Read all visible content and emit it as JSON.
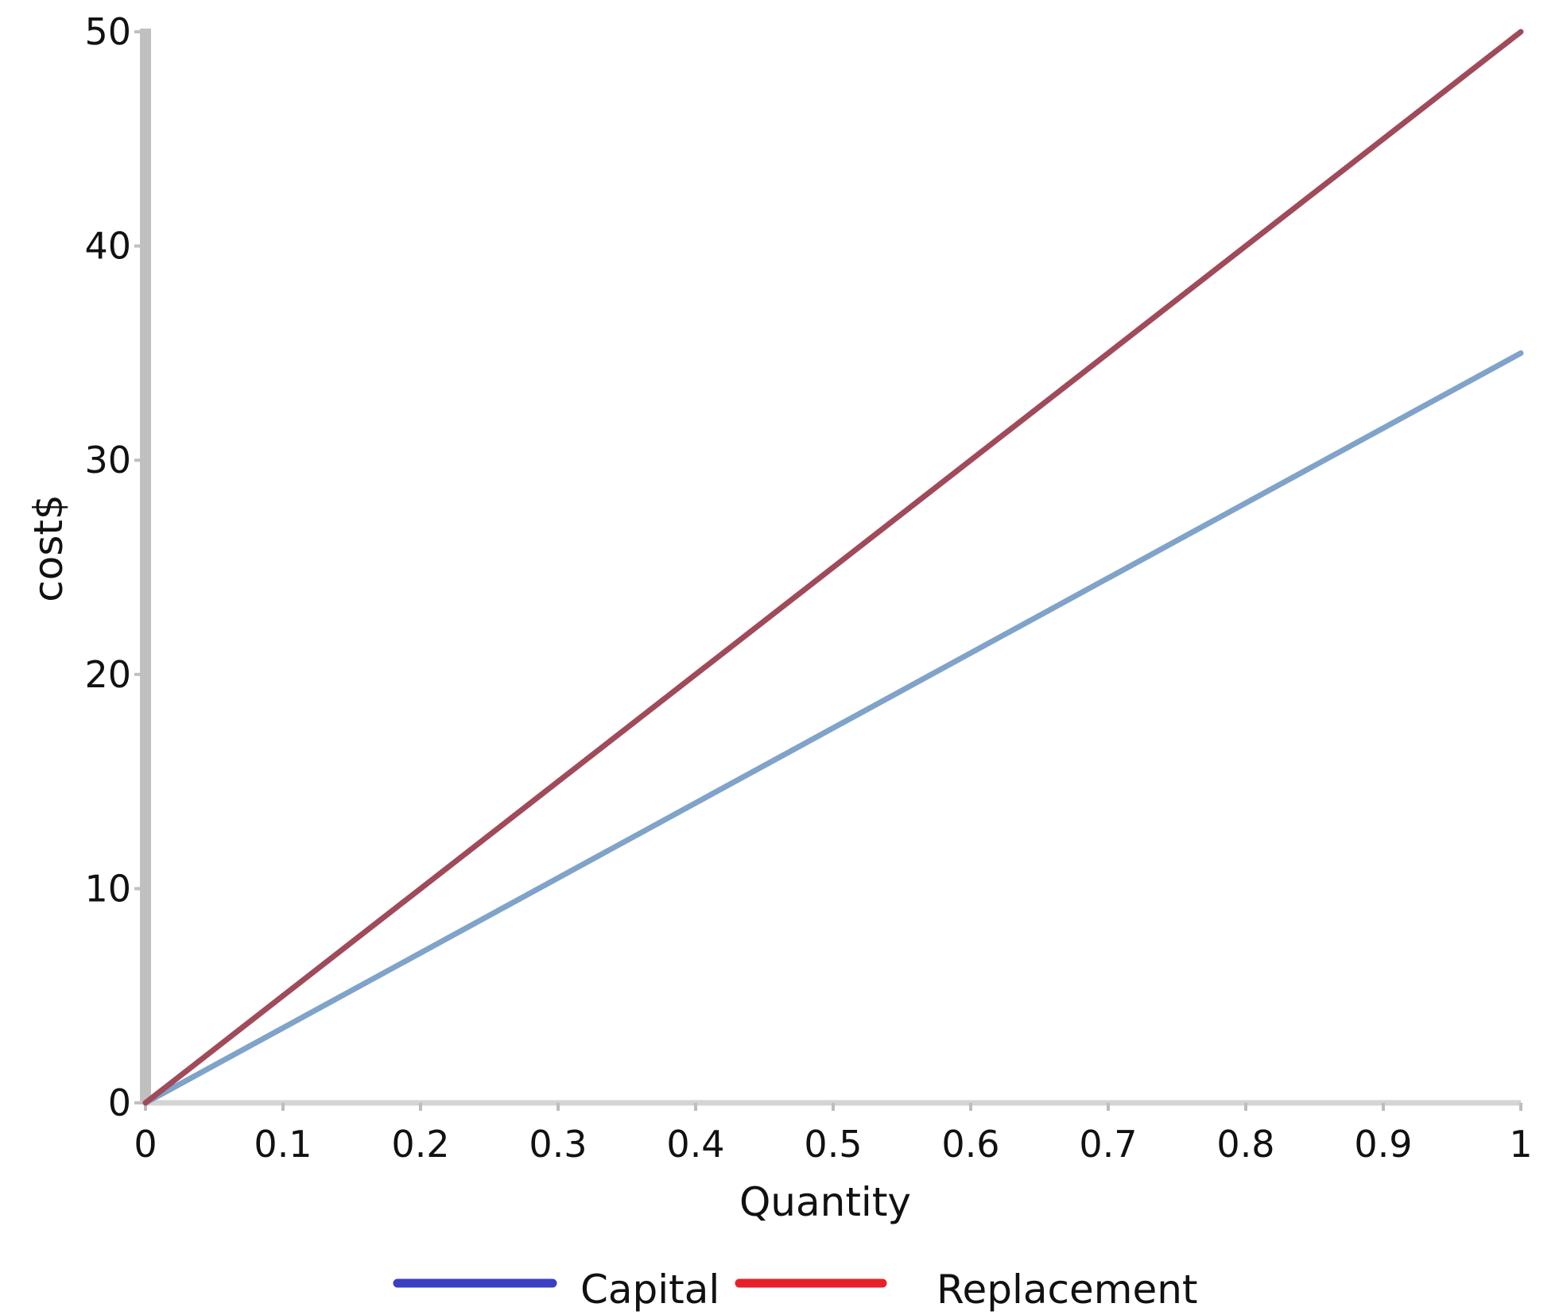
{
  "chart_data": {
    "type": "line",
    "title": "",
    "xlabel": "Quantity",
    "ylabel": "cost$",
    "xlim": [
      0,
      1
    ],
    "ylim": [
      0,
      50
    ],
    "x_ticks": [
      "0",
      "0.1",
      "0.2",
      "0.3",
      "0.4",
      "0.5",
      "0.6",
      "0.7",
      "0.8",
      "0.9",
      "1"
    ],
    "y_ticks": [
      "0",
      "10",
      "20",
      "30",
      "40",
      "50"
    ],
    "grid": false,
    "legend_position": "bottom",
    "series": [
      {
        "name": "Capital",
        "x": [
          0,
          1
        ],
        "y": [
          0,
          35
        ],
        "line_color": "#7fa3c9",
        "legend_color": "#3a3fc4"
      },
      {
        "name": "Replacement",
        "x": [
          0,
          1
        ],
        "y": [
          0,
          50
        ],
        "line_color": "#a04a5a",
        "legend_color": "#e8202a"
      }
    ]
  },
  "colors": {
    "y_axis": "#c0c0c0",
    "x_axis": "#d4d4d4",
    "text": "#111111"
  }
}
